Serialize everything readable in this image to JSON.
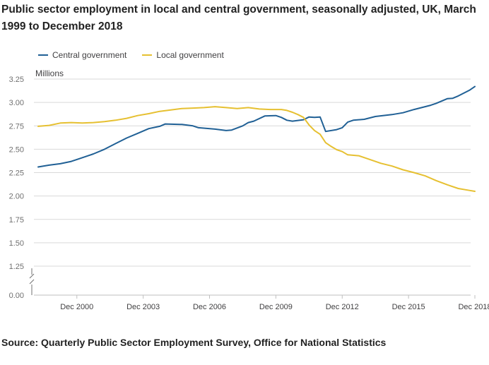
{
  "title": "Public sector employment in local and central government, seasonally adjusted, UK, March 1999 to December 2018",
  "unit_label": "Millions",
  "source": "Source: Quarterly Public Sector Employment Survey, Office for National Statistics",
  "colors": {
    "central": "#206095",
    "local": "#e6c031",
    "grid": "#d9d9d9",
    "axis": "#7f7f7f"
  },
  "legend": [
    {
      "label": "Central government",
      "series": "central"
    },
    {
      "label": "Local government",
      "series": "local"
    }
  ],
  "chart_data": {
    "type": "line",
    "title": "Public sector employment in local and central government, seasonally adjusted, UK, March 1999 to December 2018",
    "xlabel": "",
    "ylabel": "Millions",
    "x_range": [
      1999.0,
      2018.75
    ],
    "ylim": [
      0,
      3.25
    ],
    "axis_break": true,
    "y_ticks": [
      0.0,
      1.25,
      1.5,
      1.75,
      2.0,
      2.25,
      2.5,
      2.75,
      3.0,
      3.25
    ],
    "y_tick_labels": [
      "0.00",
      "1.25",
      "1.50",
      "1.75",
      "2.00",
      "2.25",
      "2.50",
      "2.75",
      "3.00",
      "3.25"
    ],
    "x_ticks": [
      {
        "label": "Dec 2000",
        "x": 2000.75
      },
      {
        "label": "Dec 2003",
        "x": 2003.75
      },
      {
        "label": "Dec 2006",
        "x": 2006.75
      },
      {
        "label": "Dec 2009",
        "x": 2009.75
      },
      {
        "label": "Dec 2012",
        "x": 2012.75
      },
      {
        "label": "Dec 2015",
        "x": 2015.75
      },
      {
        "label": "Dec 2018",
        "x": 2018.75
      }
    ],
    "series": [
      {
        "name": "Central government",
        "key": "central",
        "points": [
          [
            1999.0,
            2.31
          ],
          [
            1999.5,
            2.33
          ],
          [
            2000.0,
            2.345
          ],
          [
            2000.5,
            2.37
          ],
          [
            2000.75,
            2.39
          ],
          [
            2001.0,
            2.41
          ],
          [
            2001.5,
            2.45
          ],
          [
            2002.0,
            2.5
          ],
          [
            2002.5,
            2.56
          ],
          [
            2003.0,
            2.62
          ],
          [
            2003.5,
            2.67
          ],
          [
            2004.0,
            2.72
          ],
          [
            2004.5,
            2.745
          ],
          [
            2004.75,
            2.77
          ],
          [
            2005.5,
            2.765
          ],
          [
            2006.0,
            2.75
          ],
          [
            2006.25,
            2.73
          ],
          [
            2007.0,
            2.715
          ],
          [
            2007.5,
            2.7
          ],
          [
            2007.75,
            2.705
          ],
          [
            2008.25,
            2.75
          ],
          [
            2008.5,
            2.785
          ],
          [
            2008.75,
            2.8
          ],
          [
            2009.25,
            2.855
          ],
          [
            2009.75,
            2.86
          ],
          [
            2010.0,
            2.84
          ],
          [
            2010.25,
            2.81
          ],
          [
            2010.5,
            2.8
          ],
          [
            2011.0,
            2.815
          ],
          [
            2011.25,
            2.845
          ],
          [
            2011.5,
            2.84
          ],
          [
            2011.75,
            2.845
          ],
          [
            2012.0,
            2.69
          ],
          [
            2012.5,
            2.71
          ],
          [
            2012.75,
            2.73
          ],
          [
            2013.0,
            2.79
          ],
          [
            2013.25,
            2.81
          ],
          [
            2013.75,
            2.82
          ],
          [
            2014.25,
            2.85
          ],
          [
            2015.0,
            2.87
          ],
          [
            2015.5,
            2.89
          ],
          [
            2016.0,
            2.925
          ],
          [
            2016.75,
            2.97
          ],
          [
            2017.0,
            2.99
          ],
          [
            2017.5,
            3.04
          ],
          [
            2017.75,
            3.045
          ],
          [
            2018.0,
            3.07
          ],
          [
            2018.5,
            3.13
          ],
          [
            2018.75,
            3.17
          ]
        ]
      },
      {
        "name": "Local government",
        "key": "local",
        "points": [
          [
            1999.0,
            2.745
          ],
          [
            1999.5,
            2.755
          ],
          [
            2000.0,
            2.78
          ],
          [
            2000.5,
            2.785
          ],
          [
            2001.0,
            2.78
          ],
          [
            2001.5,
            2.785
          ],
          [
            2002.0,
            2.795
          ],
          [
            2002.5,
            2.81
          ],
          [
            2003.0,
            2.83
          ],
          [
            2003.5,
            2.86
          ],
          [
            2004.0,
            2.88
          ],
          [
            2004.5,
            2.905
          ],
          [
            2005.0,
            2.92
          ],
          [
            2005.5,
            2.935
          ],
          [
            2006.0,
            2.94
          ],
          [
            2006.5,
            2.945
          ],
          [
            2007.0,
            2.955
          ],
          [
            2007.5,
            2.945
          ],
          [
            2008.0,
            2.935
          ],
          [
            2008.5,
            2.945
          ],
          [
            2009.0,
            2.93
          ],
          [
            2009.5,
            2.925
          ],
          [
            2010.0,
            2.925
          ],
          [
            2010.25,
            2.915
          ],
          [
            2010.5,
            2.895
          ],
          [
            2010.75,
            2.87
          ],
          [
            2011.0,
            2.84
          ],
          [
            2011.25,
            2.76
          ],
          [
            2011.5,
            2.7
          ],
          [
            2011.75,
            2.66
          ],
          [
            2012.0,
            2.57
          ],
          [
            2012.25,
            2.53
          ],
          [
            2012.5,
            2.495
          ],
          [
            2012.75,
            2.475
          ],
          [
            2013.0,
            2.44
          ],
          [
            2013.5,
            2.43
          ],
          [
            2014.0,
            2.39
          ],
          [
            2014.5,
            2.35
          ],
          [
            2015.0,
            2.32
          ],
          [
            2015.5,
            2.28
          ],
          [
            2016.0,
            2.25
          ],
          [
            2016.5,
            2.215
          ],
          [
            2017.0,
            2.165
          ],
          [
            2017.5,
            2.12
          ],
          [
            2018.0,
            2.08
          ],
          [
            2018.5,
            2.06
          ],
          [
            2018.75,
            2.05
          ]
        ]
      }
    ]
  }
}
